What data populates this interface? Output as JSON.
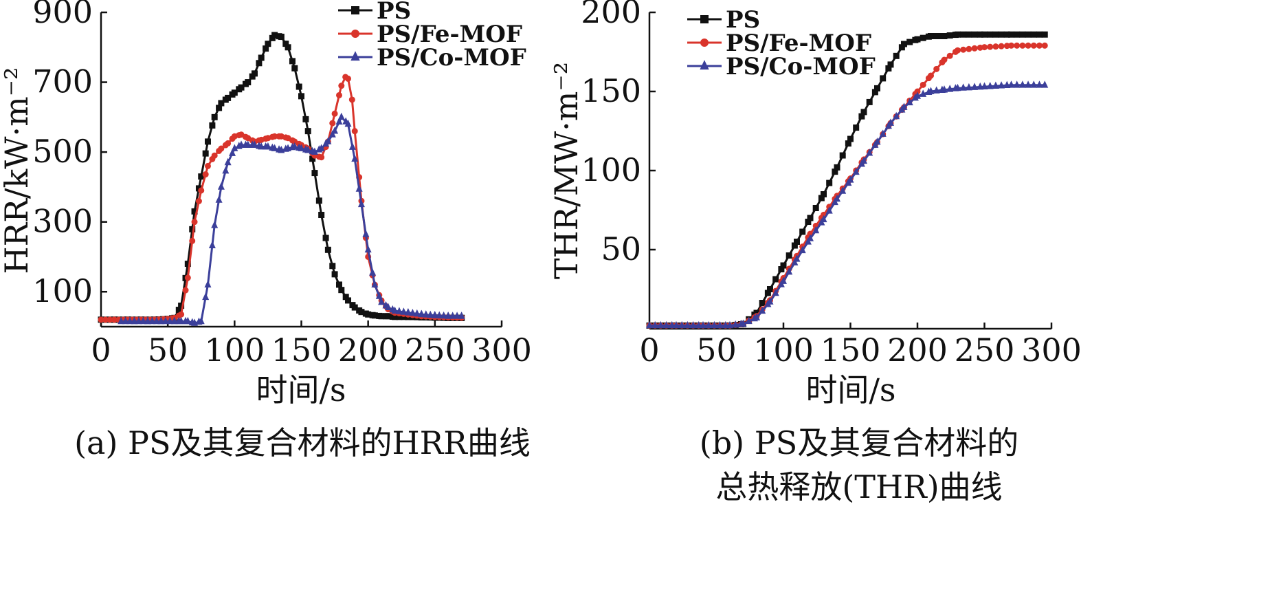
{
  "chart_data": [
    {
      "type": "line",
      "caption": "(a) PS及其复合材料的HRR曲线",
      "xlabel": "时间/s",
      "ylabel": "HRR/kW·m⁻²",
      "xlim": [
        0,
        300
      ],
      "ylim": [
        0,
        900
      ],
      "xticks": [
        0,
        50,
        100,
        150,
        200,
        250,
        300
      ],
      "yticks": [
        100,
        300,
        500,
        700,
        900
      ],
      "legend_position": "top-center",
      "series": [
        {
          "name": "PS",
          "color": "#111111",
          "marker": "square",
          "x": [
            0,
            10,
            20,
            30,
            40,
            50,
            55,
            60,
            65,
            70,
            75,
            80,
            85,
            90,
            95,
            100,
            105,
            110,
            115,
            120,
            125,
            130,
            135,
            140,
            145,
            150,
            155,
            160,
            165,
            170,
            175,
            180,
            185,
            190,
            195,
            200,
            205,
            210,
            215,
            220,
            230,
            240,
            250,
            260,
            270
          ],
          "y": [
            20,
            20,
            20,
            20,
            20,
            22,
            25,
            60,
            180,
            330,
            430,
            530,
            600,
            640,
            655,
            670,
            685,
            700,
            725,
            770,
            810,
            835,
            830,
            800,
            740,
            660,
            560,
            440,
            320,
            220,
            150,
            105,
            75,
            55,
            42,
            35,
            32,
            30,
            30,
            28,
            28,
            27,
            26,
            25,
            25
          ]
        },
        {
          "name": "PS/Fe-MOF",
          "color": "#d9342b",
          "marker": "circle",
          "x": [
            0,
            10,
            20,
            30,
            40,
            50,
            55,
            60,
            65,
            70,
            75,
            80,
            85,
            90,
            95,
            100,
            105,
            110,
            115,
            120,
            125,
            130,
            135,
            140,
            145,
            150,
            155,
            160,
            165,
            170,
            175,
            180,
            183,
            185,
            188,
            190,
            195,
            200,
            205,
            210,
            215,
            220,
            230,
            240,
            250,
            260,
            270
          ],
          "y": [
            20,
            20,
            20,
            20,
            20,
            22,
            25,
            35,
            140,
            300,
            390,
            460,
            490,
            510,
            525,
            545,
            550,
            540,
            530,
            535,
            540,
            545,
            545,
            540,
            530,
            520,
            510,
            490,
            485,
            530,
            610,
            690,
            715,
            710,
            650,
            560,
            360,
            200,
            120,
            75,
            50,
            40,
            35,
            30,
            28,
            27,
            26
          ]
        },
        {
          "name": "PS/Co-MOF",
          "color": "#3b3f9a",
          "marker": "triangle",
          "x": [
            15,
            25,
            35,
            45,
            55,
            60,
            65,
            70,
            75,
            80,
            85,
            90,
            95,
            100,
            105,
            110,
            115,
            120,
            125,
            130,
            135,
            140,
            145,
            150,
            155,
            160,
            165,
            170,
            175,
            180,
            185,
            190,
            195,
            200,
            205,
            210,
            215,
            220,
            230,
            240,
            250,
            260,
            270
          ],
          "y": [
            15,
            15,
            15,
            15,
            15,
            15,
            15,
            10,
            15,
            120,
            290,
            400,
            470,
            510,
            520,
            520,
            520,
            515,
            515,
            510,
            505,
            510,
            515,
            510,
            505,
            500,
            510,
            530,
            560,
            600,
            580,
            480,
            350,
            220,
            120,
            70,
            55,
            45,
            40,
            35,
            32,
            30,
            30
          ]
        }
      ]
    },
    {
      "type": "line",
      "caption_lines": [
        "(b) PS及其复合材料的",
        "总热释放(THR)曲线"
      ],
      "xlabel": "时间/s",
      "ylabel": "THR/MW·m⁻²",
      "xlim": [
        0,
        300
      ],
      "ylim": [
        0,
        200
      ],
      "xticks": [
        0,
        50,
        100,
        150,
        200,
        250,
        300
      ],
      "yticks": [
        50,
        100,
        150,
        200
      ],
      "legend_position": "top-left",
      "series": [
        {
          "name": "PS",
          "color": "#111111",
          "marker": "square",
          "x": [
            0,
            20,
            40,
            60,
            70,
            80,
            90,
            100,
            110,
            120,
            130,
            140,
            150,
            160,
            170,
            180,
            190,
            200,
            210,
            220,
            230,
            250,
            270,
            295
          ],
          "y": [
            2,
            2,
            2,
            2,
            3,
            10,
            25,
            40,
            55,
            70,
            85,
            102,
            120,
            137,
            152,
            167,
            180,
            183,
            185,
            185,
            186,
            186,
            186,
            186
          ]
        },
        {
          "name": "PS/Fe-MOF",
          "color": "#d9342b",
          "marker": "circle",
          "x": [
            0,
            20,
            40,
            60,
            70,
            80,
            90,
            100,
            110,
            120,
            130,
            140,
            150,
            160,
            170,
            180,
            190,
            200,
            210,
            220,
            230,
            250,
            270,
            295
          ],
          "y": [
            2,
            2,
            2,
            2,
            3,
            8,
            18,
            32,
            46,
            60,
            72,
            84,
            95,
            107,
            118,
            130,
            140,
            150,
            160,
            170,
            176,
            178,
            179,
            179
          ]
        },
        {
          "name": "PS/Co-MOF",
          "color": "#3b3f9a",
          "marker": "triangle",
          "x": [
            0,
            20,
            40,
            60,
            70,
            80,
            90,
            100,
            110,
            120,
            130,
            140,
            150,
            160,
            170,
            180,
            190,
            200,
            210,
            220,
            230,
            250,
            270,
            295
          ],
          "y": [
            2,
            2,
            2,
            2,
            3,
            7,
            17,
            30,
            44,
            57,
            69,
            82,
            94,
            106,
            118,
            130,
            140,
            147,
            150,
            151,
            152,
            153,
            154,
            154
          ]
        }
      ]
    }
  ]
}
